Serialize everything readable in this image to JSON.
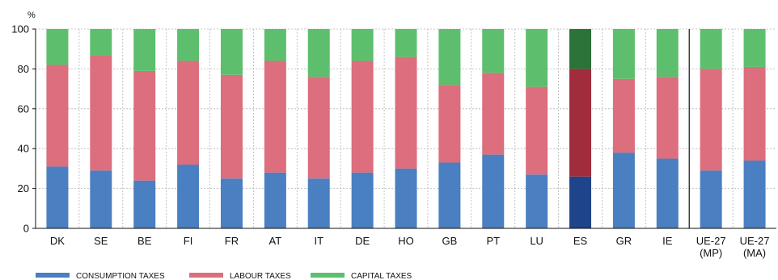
{
  "chart_data": {
    "type": "bar",
    "stacked": true,
    "unit_label": "%",
    "ylim": [
      0,
      100
    ],
    "yticks": [
      0,
      20,
      40,
      60,
      80,
      100
    ],
    "grid": "dashed horizontal and vertical",
    "legend_position": "bottom",
    "categories": [
      [
        "DK"
      ],
      [
        "SE"
      ],
      [
        "BE"
      ],
      [
        "FI"
      ],
      [
        "FR"
      ],
      [
        "AT"
      ],
      [
        "IT"
      ],
      [
        "DE"
      ],
      [
        "HO"
      ],
      [
        "GB"
      ],
      [
        "PT"
      ],
      [
        "LU"
      ],
      [
        "ES"
      ],
      [
        "GR"
      ],
      [
        "IE"
      ],
      [
        "UE-27",
        "(MP)"
      ],
      [
        "UE-27",
        "(MA)"
      ]
    ],
    "highlighted_category": "ES",
    "separator_before_category": "UE-27 (MP)",
    "series": [
      {
        "name": "CONSUMPTION TAXES",
        "color": "#4a7fc1",
        "highlight_color": "#1e4489",
        "values": [
          31,
          29,
          24,
          32,
          25,
          28,
          25,
          28,
          30,
          33,
          37,
          27,
          26,
          38,
          35,
          29,
          34
        ]
      },
      {
        "name": "LABOUR TAXES",
        "color": "#dc6e7d",
        "highlight_color": "#a02c3c",
        "values": [
          51,
          58,
          55,
          52,
          52,
          56,
          51,
          56,
          56,
          39,
          41,
          44,
          54,
          37,
          41,
          51,
          47
        ]
      },
      {
        "name": "CAPITAL TAXES",
        "color": "#5dbf6d",
        "highlight_color": "#2c7339",
        "values": [
          18,
          13,
          21,
          16,
          23,
          16,
          24,
          16,
          14,
          28,
          22,
          29,
          20,
          25,
          24,
          20,
          19
        ]
      }
    ]
  }
}
